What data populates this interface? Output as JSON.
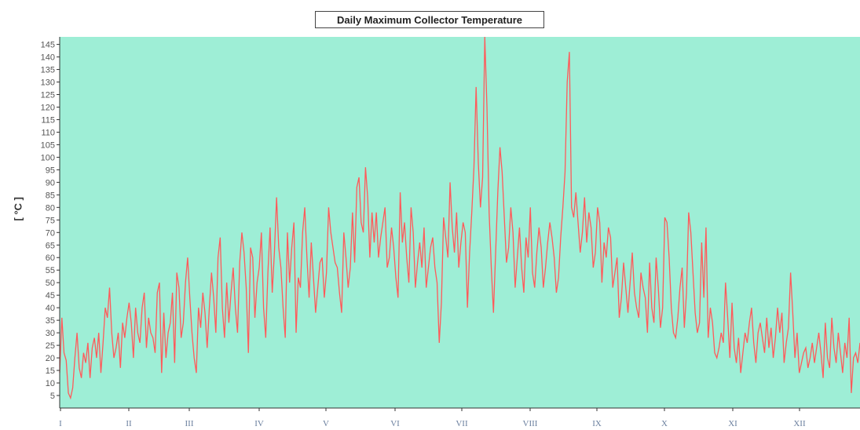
{
  "chart_data": {
    "type": "line",
    "title": "Daily Maximum Collector Temperature",
    "ylabel": "[ °C ]",
    "xlabel": "",
    "ylim": [
      0,
      148
    ],
    "yticks": [
      5,
      10,
      15,
      20,
      25,
      30,
      35,
      40,
      45,
      50,
      55,
      60,
      65,
      70,
      75,
      80,
      85,
      90,
      95,
      100,
      105,
      110,
      115,
      120,
      125,
      130,
      135,
      140,
      145
    ],
    "month_labels": [
      "I",
      "II",
      "III",
      "IV",
      "V",
      "VI",
      "VII",
      "VIII",
      "IX",
      "X",
      "XI",
      "XII"
    ],
    "grid": false,
    "background_color": "#9eeed6",
    "line_color": "#ff5a5a",
    "series": [
      {
        "values": [
          14,
          36,
          22,
          19,
          6,
          4,
          8,
          20,
          30,
          16,
          12,
          22,
          18,
          26,
          12,
          24,
          28,
          20,
          30,
          14,
          26,
          40,
          36,
          48,
          30,
          20,
          24,
          30,
          16,
          34,
          28,
          36,
          42,
          34,
          20,
          40,
          30,
          26,
          40,
          46,
          24,
          36,
          30,
          28,
          22,
          46,
          50,
          14,
          38,
          20,
          30,
          34,
          46,
          18,
          54,
          48,
          28,
          34,
          50,
          60,
          44,
          30,
          20,
          14,
          40,
          32,
          46,
          38,
          24,
          40,
          54,
          44,
          30,
          60,
          68,
          40,
          28,
          50,
          34,
          46,
          56,
          40,
          30,
          58,
          70,
          62,
          48,
          22,
          64,
          60,
          36,
          50,
          56,
          70,
          40,
          28,
          54,
          72,
          46,
          62,
          84,
          64,
          56,
          40,
          28,
          70,
          50,
          64,
          74,
          30,
          52,
          48,
          70,
          80,
          60,
          44,
          66,
          52,
          38,
          48,
          58,
          60,
          44,
          54,
          80,
          70,
          64,
          58,
          56,
          46,
          38,
          70,
          60,
          48,
          56,
          78,
          58,
          88,
          92,
          74,
          70,
          96,
          84,
          60,
          78,
          66,
          78,
          60,
          68,
          74,
          80,
          56,
          60,
          72,
          64,
          52,
          44,
          86,
          66,
          74,
          60,
          50,
          80,
          70,
          48,
          58,
          66,
          56,
          72,
          48,
          56,
          64,
          68,
          56,
          50,
          26,
          42,
          76,
          68,
          60,
          90,
          72,
          62,
          78,
          56,
          66,
          74,
          70,
          40,
          62,
          78,
          96,
          128,
          98,
          80,
          92,
          150,
          120,
          78,
          56,
          38,
          62,
          86,
          104,
          94,
          76,
          58,
          64,
          80,
          70,
          48,
          60,
          72,
          56,
          46,
          68,
          60,
          80,
          54,
          48,
          62,
          72,
          64,
          48,
          56,
          66,
          74,
          68,
          60,
          46,
          52,
          68,
          80,
          94,
          130,
          142,
          80,
          76,
          86,
          74,
          62,
          70,
          84,
          66,
          78,
          72,
          56,
          62,
          80,
          74,
          50,
          66,
          60,
          72,
          68,
          48,
          54,
          60,
          36,
          44,
          58,
          48,
          38,
          50,
          62,
          46,
          40,
          36,
          54,
          48,
          44,
          30,
          58,
          40,
          34,
          60,
          48,
          32,
          40,
          76,
          74,
          60,
          40,
          30,
          28,
          36,
          48,
          56,
          32,
          46,
          78,
          70,
          54,
          38,
          30,
          34,
          66,
          44,
          72,
          28,
          40,
          34,
          22,
          20,
          24,
          30,
          26,
          50,
          36,
          20,
          42,
          24,
          18,
          28,
          14,
          22,
          30,
          26,
          34,
          40,
          26,
          18,
          30,
          34,
          28,
          22,
          36,
          24,
          32,
          20,
          28,
          40,
          30,
          38,
          18,
          26,
          32,
          54,
          38,
          20,
          30,
          14,
          18,
          22,
          24,
          16,
          20,
          26,
          18,
          24,
          30,
          22,
          12,
          34,
          20,
          16,
          36,
          24,
          18,
          30,
          22,
          14,
          26,
          20,
          36,
          6,
          20,
          22,
          18,
          26
        ]
      }
    ]
  }
}
